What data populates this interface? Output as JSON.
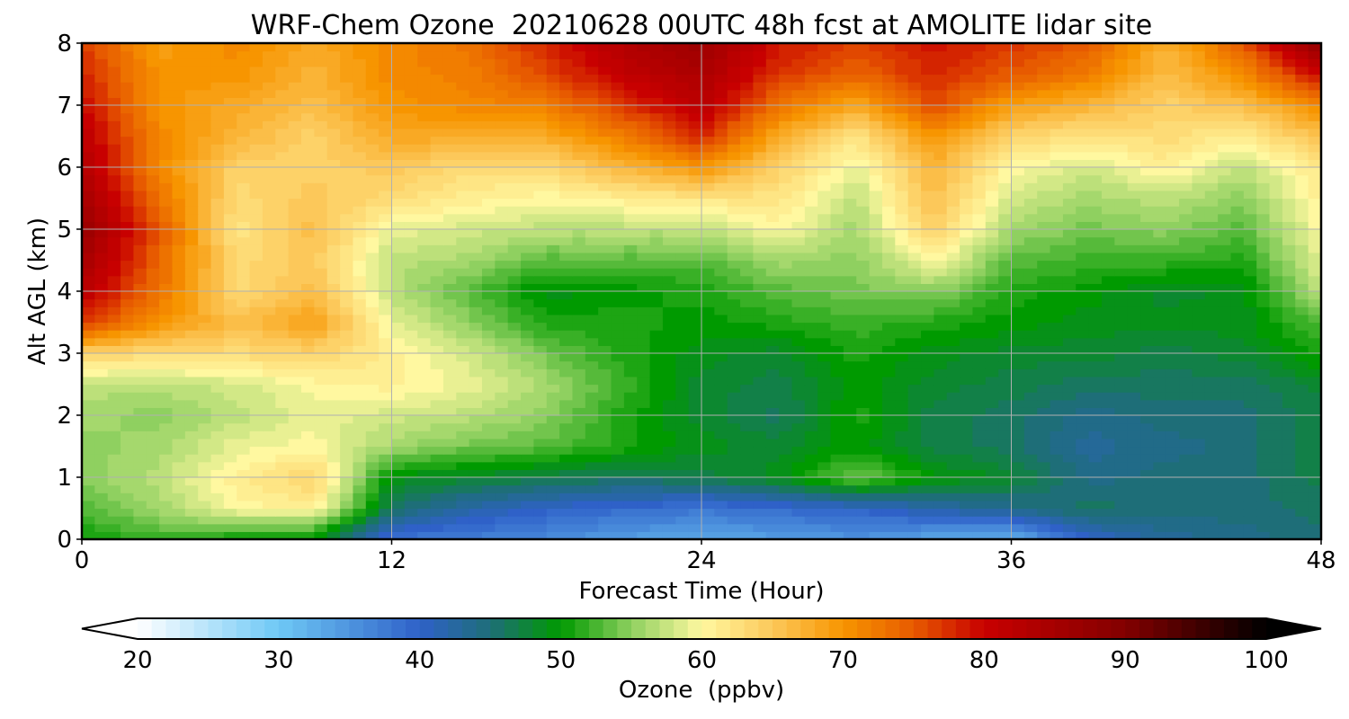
{
  "chart_data": {
    "type": "heatmap",
    "title": "WRF-Chem Ozone  20210628 00UTC 48h fcst at AMOLITE lidar site",
    "xlabel": "Forecast Time (Hour)",
    "ylabel": "Alt AGL (km)",
    "xlim": [
      0,
      48
    ],
    "ylim": [
      0,
      8
    ],
    "xticks": [
      "0",
      "12",
      "24",
      "36",
      "48"
    ],
    "yticks": [
      "0",
      "1",
      "2",
      "3",
      "4",
      "5",
      "6",
      "7",
      "8"
    ],
    "grid": true,
    "colorbar": {
      "label": "Ozone  (ppbv)",
      "range": [
        20,
        100
      ],
      "ticks": [
        "20",
        "30",
        "40",
        "50",
        "60",
        "70",
        "80",
        "90",
        "100"
      ],
      "extend": "both",
      "stops": [
        {
          "value": 20,
          "color": "#ffffff"
        },
        {
          "value": 30,
          "color": "#6ec8f5"
        },
        {
          "value": 40,
          "color": "#2f61c8"
        },
        {
          "value": 45,
          "color": "#1e6e78"
        },
        {
          "value": 50,
          "color": "#009a00"
        },
        {
          "value": 55,
          "color": "#8fd060"
        },
        {
          "value": 60,
          "color": "#fff8a0"
        },
        {
          "value": 65,
          "color": "#fcc85a"
        },
        {
          "value": 70,
          "color": "#f79500"
        },
        {
          "value": 75,
          "color": "#e75a00"
        },
        {
          "value": 80,
          "color": "#c80000"
        },
        {
          "value": 90,
          "color": "#820000"
        },
        {
          "value": 100,
          "color": "#000000"
        }
      ]
    },
    "x_hours": [
      0,
      3,
      6,
      9,
      12,
      15,
      18,
      21,
      24,
      27,
      30,
      33,
      36,
      39,
      42,
      45,
      48
    ],
    "y_km": [
      0,
      0.5,
      1,
      1.5,
      2,
      2.5,
      3,
      3.5,
      4,
      4.5,
      5,
      5.5,
      6,
      6.5,
      7,
      7.5,
      8
    ],
    "z_ppbv": [
      [
        50,
        52,
        50,
        49,
        38,
        37,
        36,
        34,
        33,
        34,
        35,
        33,
        32,
        40,
        43,
        44,
        45
      ],
      [
        53,
        56,
        60,
        61,
        46,
        42,
        40,
        39,
        38,
        39,
        40,
        42,
        44,
        46,
        45,
        45,
        46
      ],
      [
        55,
        57,
        61,
        64,
        49,
        48,
        47,
        46,
        47,
        49,
        54,
        50,
        48,
        44,
        45,
        45,
        47
      ],
      [
        55,
        56,
        59,
        60,
        56,
        54,
        53,
        51,
        49,
        48,
        50,
        47,
        46,
        43,
        44,
        45,
        47
      ],
      [
        56,
        55,
        57,
        59,
        58,
        57,
        55,
        51,
        48,
        46,
        51,
        47,
        46,
        44,
        45,
        45,
        47
      ],
      [
        57,
        57,
        58,
        60,
        61,
        59,
        56,
        52,
        48,
        47,
        50,
        48,
        47,
        46,
        46,
        46,
        48
      ],
      [
        64,
        63,
        63,
        64,
        61,
        58,
        54,
        51,
        49,
        48,
        51,
        49,
        48,
        48,
        47,
        48,
        51
      ],
      [
        77,
        70,
        66,
        69,
        59,
        55,
        51,
        51,
        50,
        51,
        52,
        51,
        50,
        49,
        49,
        49,
        53
      ],
      [
        82,
        73,
        63,
        66,
        57,
        53,
        49,
        50,
        51,
        53,
        54,
        55,
        51,
        50,
        48,
        49,
        57
      ],
      [
        85,
        74,
        63,
        65,
        57,
        56,
        53,
        53,
        53,
        56,
        55,
        60,
        53,
        52,
        52,
        51,
        59
      ],
      [
        87,
        75,
        62,
        66,
        59,
        58,
        57,
        57,
        57,
        60,
        56,
        64,
        56,
        54,
        55,
        53,
        60
      ],
      [
        85,
        73,
        63,
        65,
        63,
        61,
        60,
        61,
        62,
        62,
        57,
        66,
        58,
        56,
        57,
        55,
        61
      ],
      [
        83,
        71,
        64,
        64,
        65,
        63,
        63,
        67,
        70,
        64,
        59,
        67,
        60,
        58,
        61,
        57,
        62
      ],
      [
        82,
        71,
        67,
        64,
        68,
        68,
        68,
        72,
        78,
        68,
        62,
        70,
        64,
        62,
        63,
        61,
        66
      ],
      [
        80,
        70,
        68,
        66,
        70,
        71,
        72,
        77,
        82,
        73,
        68,
        76,
        69,
        67,
        64,
        66,
        71
      ],
      [
        78,
        70,
        70,
        67,
        71,
        72,
        76,
        81,
        84,
        77,
        74,
        78,
        75,
        72,
        66,
        71,
        80
      ],
      [
        77,
        69,
        71,
        68,
        71,
        73,
        78,
        83,
        86,
        79,
        76,
        79,
        77,
        75,
        67,
        75,
        88
      ]
    ]
  }
}
